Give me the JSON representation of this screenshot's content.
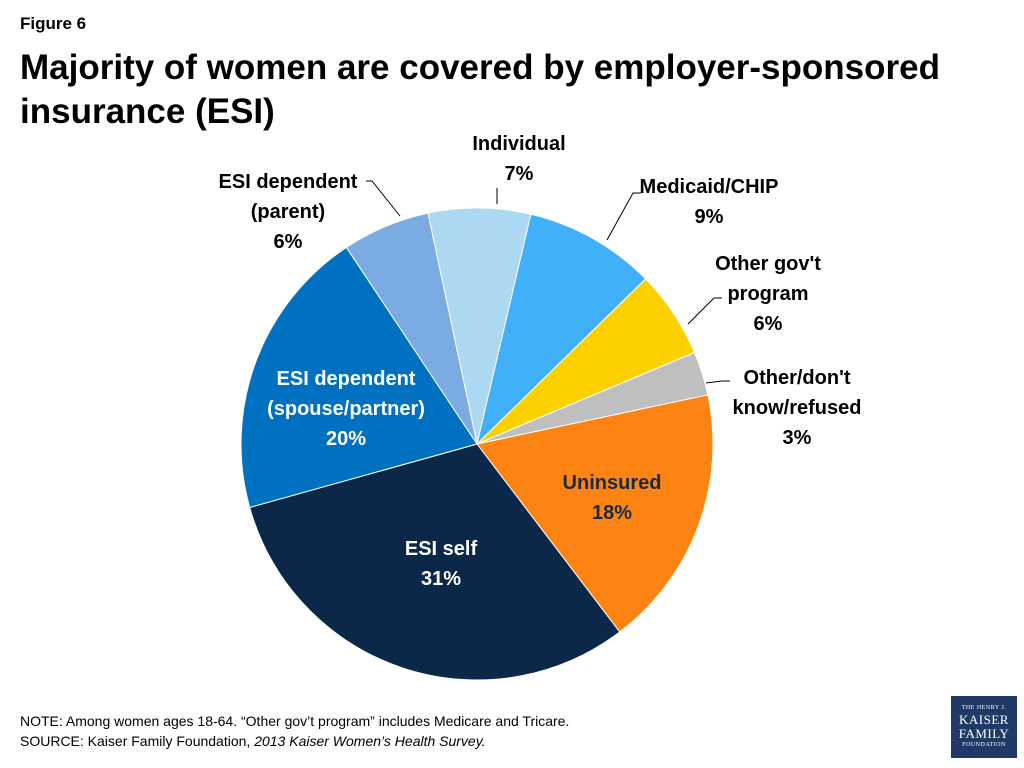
{
  "figure_label": "Figure 6",
  "title": "Majority of women are covered by employer-sponsored insurance (ESI)",
  "note_line": "NOTE: Among women ages 18-64. “Other gov’t program” includes Medicare and Tricare.",
  "source_prefix": "SOURCE: Kaiser Family Foundation, ",
  "source_title": "2013 Kaiser Women’s Health Survey.",
  "logo": {
    "line1": "THE HENRY J.",
    "line2": "KAISER",
    "line3": "FAMILY",
    "line4": "FOUNDATION"
  },
  "chart_data": {
    "type": "pie",
    "title": "",
    "slices": [
      {
        "label_lines": [
          "Individual"
        ],
        "pct_label": "7%",
        "value": 7,
        "color": "#add8f2",
        "label_color": "#000000",
        "label_inside": false
      },
      {
        "label_lines": [
          "Medicaid/CHIP"
        ],
        "pct_label": "9%",
        "value": 9,
        "color": "#41b0fb",
        "label_color": "#000000",
        "label_inside": false
      },
      {
        "label_lines": [
          "Other gov't",
          "program"
        ],
        "pct_label": "6%",
        "value": 6,
        "color": "#fdd000",
        "label_color": "#000000",
        "label_inside": false
      },
      {
        "label_lines": [
          "Other/don't",
          "know/refused"
        ],
        "pct_label": "3%",
        "value": 3,
        "color": "#bfbfbf",
        "label_color": "#000000",
        "label_inside": false
      },
      {
        "label_lines": [
          "Uninsured"
        ],
        "pct_label": "18%",
        "value": 18,
        "color": "#fd8413",
        "label_color": "#1a2a44",
        "label_inside": true
      },
      {
        "label_lines": [
          "ESI self"
        ],
        "pct_label": "31%",
        "value": 31,
        "color": "#0b2849",
        "label_color": "#ffffff",
        "label_inside": true
      },
      {
        "label_lines": [
          "ESI dependent",
          "(spouse/partner)"
        ],
        "pct_label": "20%",
        "value": 20,
        "color": "#0070c0",
        "label_color": "#ffffff",
        "label_inside": true
      },
      {
        "label_lines": [
          "ESI dependent",
          "(parent)"
        ],
        "pct_label": "6%",
        "value": 6,
        "color": "#7aabe3",
        "label_color": "#000000",
        "label_inside": false
      }
    ]
  }
}
